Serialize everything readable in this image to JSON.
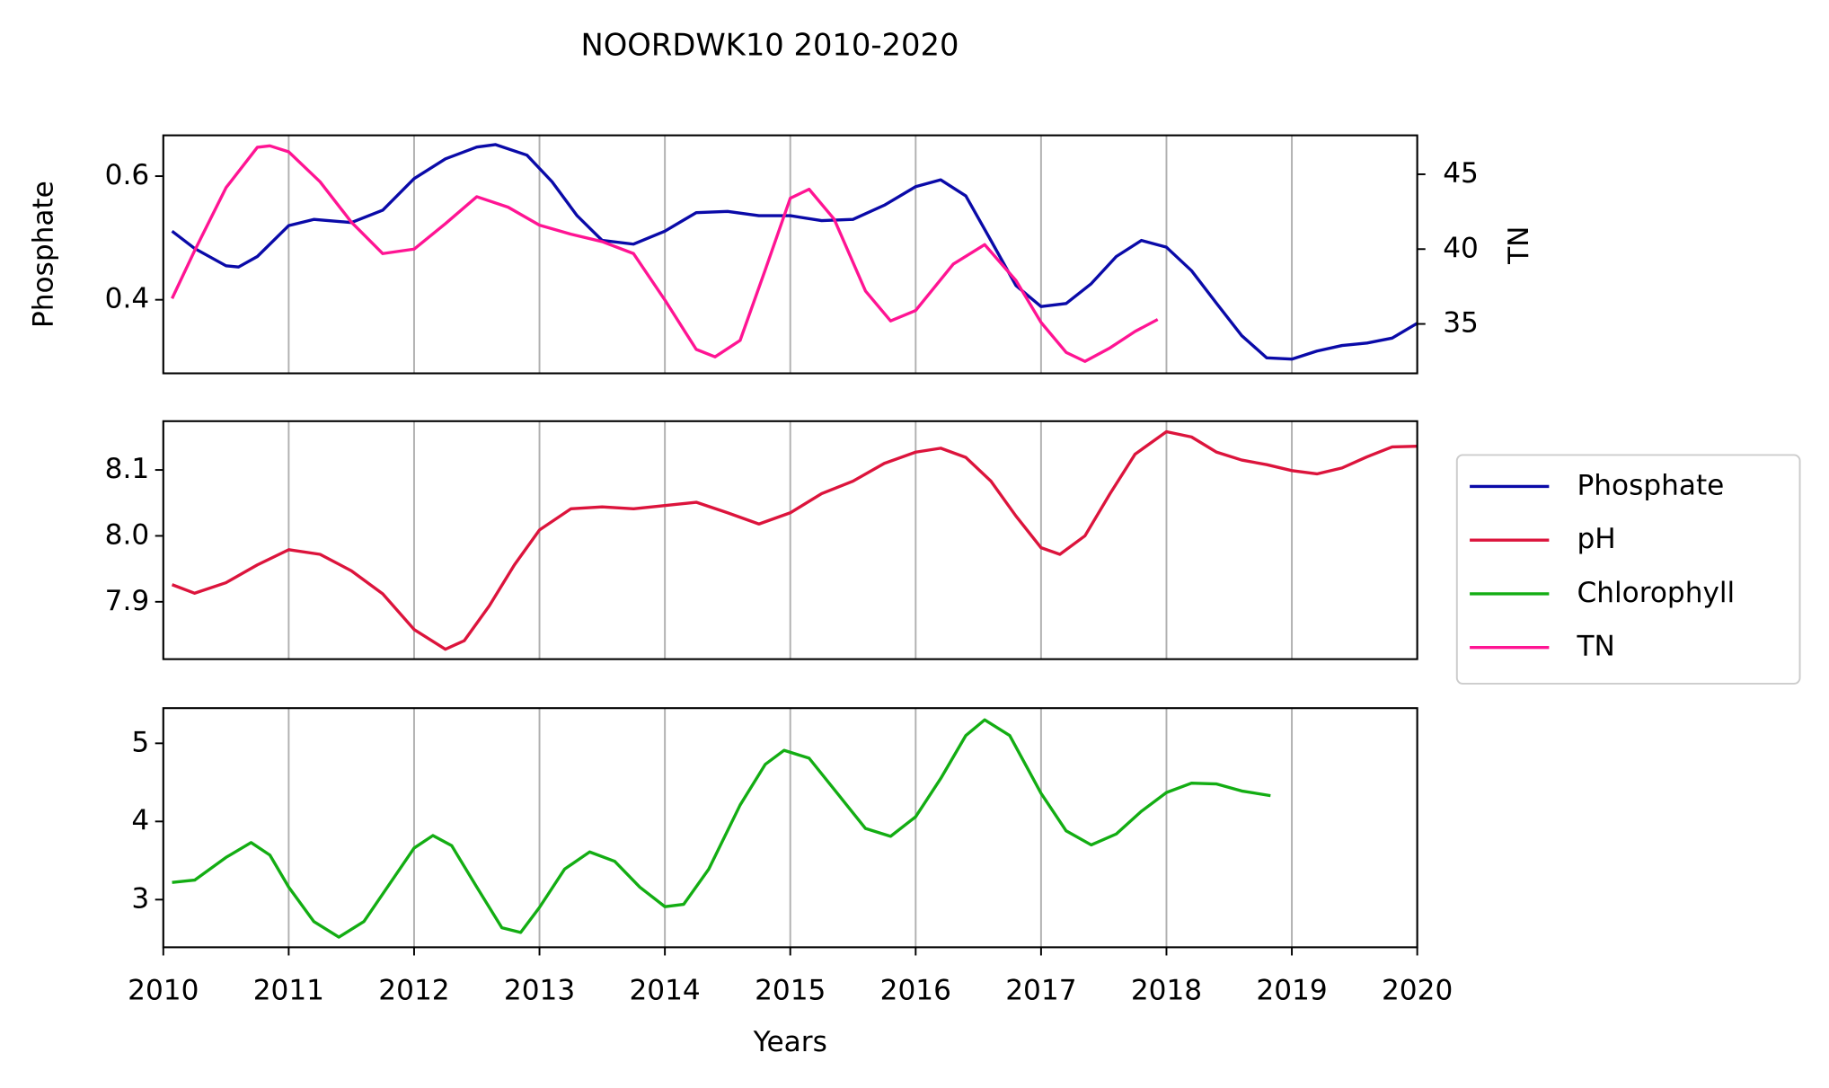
{
  "chart_data": [
    {
      "type": "line",
      "title": "NOORDWK10 2010-2020",
      "ylabel": "Phosphate",
      "y2label": "TN",
      "xlim": [
        2010,
        2020
      ],
      "xticks": [
        2010,
        2011,
        2012,
        2013,
        2014,
        2015,
        2016,
        2017,
        2018,
        2019,
        2020
      ],
      "grid": "x",
      "ylim": [
        0.281,
        0.666
      ],
      "yticks": [
        0.4,
        0.6
      ],
      "y2lim": [
        31.7,
        47.6
      ],
      "y2ticks": [
        35,
        40,
        45
      ],
      "series": [
        {
          "name": "Phosphate",
          "color": "#0a0aa8",
          "x": [
            2010.07,
            2010.25,
            2010.5,
            2010.6,
            2010.75,
            2011.0,
            2011.2,
            2011.5,
            2011.75,
            2012.0,
            2012.25,
            2012.5,
            2012.65,
            2012.9,
            2013.1,
            2013.3,
            2013.5,
            2013.75,
            2014.0,
            2014.25,
            2014.5,
            2014.75,
            2015.0,
            2015.25,
            2015.5,
            2015.75,
            2016.0,
            2016.2,
            2016.4,
            2016.6,
            2016.8,
            2017.0,
            2017.2,
            2017.4,
            2017.6,
            2017.8,
            2018.0,
            2018.2,
            2018.4,
            2018.6,
            2018.8,
            2019.0,
            2019.2,
            2019.4,
            2019.6,
            2019.8,
            2020.0
          ],
          "values": [
            0.511,
            0.483,
            0.455,
            0.453,
            0.47,
            0.52,
            0.53,
            0.525,
            0.545,
            0.596,
            0.628,
            0.647,
            0.651,
            0.634,
            0.591,
            0.536,
            0.496,
            0.49,
            0.511,
            0.541,
            0.543,
            0.536,
            0.536,
            0.528,
            0.53,
            0.553,
            0.583,
            0.594,
            0.568,
            0.496,
            0.423,
            0.389,
            0.394,
            0.426,
            0.47,
            0.496,
            0.485,
            0.447,
            0.394,
            0.342,
            0.306,
            0.304,
            0.317,
            0.326,
            0.33,
            0.338,
            0.362
          ]
        },
        {
          "name": "TN",
          "color": "#ff1493",
          "axis": "y2",
          "x": [
            2010.07,
            2010.25,
            2010.5,
            2010.75,
            2010.85,
            2011.0,
            2011.25,
            2011.5,
            2011.75,
            2012.0,
            2012.25,
            2012.5,
            2012.75,
            2013.0,
            2013.25,
            2013.5,
            2013.75,
            2014.0,
            2014.25,
            2014.4,
            2014.6,
            2014.8,
            2015.0,
            2015.15,
            2015.35,
            2015.6,
            2015.8,
            2016.0,
            2016.3,
            2016.55,
            2016.8,
            2017.0,
            2017.2,
            2017.35,
            2017.55,
            2017.75,
            2017.93
          ],
          "values": [
            36.7,
            39.9,
            44.1,
            46.8,
            46.9,
            46.5,
            44.5,
            41.8,
            39.7,
            40.0,
            41.7,
            43.5,
            42.8,
            41.6,
            41.0,
            40.5,
            39.7,
            36.6,
            33.3,
            32.8,
            33.9,
            38.6,
            43.4,
            44.0,
            42.0,
            37.2,
            35.2,
            35.9,
            39.0,
            40.3,
            37.9,
            35.1,
            33.1,
            32.5,
            33.4,
            34.5,
            35.3
          ]
        }
      ]
    },
    {
      "type": "line",
      "xlim": [
        2010,
        2020
      ],
      "xticks": [
        2010,
        2011,
        2012,
        2013,
        2014,
        2015,
        2016,
        2017,
        2018,
        2019,
        2020
      ],
      "grid": "x",
      "ylim": [
        7.813,
        8.174
      ],
      "yticks": [
        7.9,
        {
          "value": 8,
          "label": "8.0"
        },
        8.1
      ],
      "series": [
        {
          "name": "pH",
          "color": "#dc143c",
          "x": [
            2010.07,
            2010.25,
            2010.5,
            2010.75,
            2011.0,
            2011.25,
            2011.5,
            2011.75,
            2012.0,
            2012.25,
            2012.4,
            2012.6,
            2012.8,
            2013.0,
            2013.25,
            2013.5,
            2013.75,
            2014.0,
            2014.25,
            2014.5,
            2014.75,
            2015.0,
            2015.25,
            2015.5,
            2015.75,
            2016.0,
            2016.2,
            2016.4,
            2016.6,
            2016.8,
            2017.0,
            2017.15,
            2017.35,
            2017.55,
            2017.75,
            2018.0,
            2018.2,
            2018.4,
            2018.6,
            2018.8,
            2019.0,
            2019.2,
            2019.4,
            2019.6,
            2019.8,
            2020.0
          ],
          "values": [
            7.926,
            7.913,
            7.929,
            7.956,
            7.979,
            7.972,
            7.947,
            7.912,
            7.858,
            7.828,
            7.841,
            7.894,
            7.956,
            8.009,
            8.041,
            8.044,
            8.041,
            8.046,
            8.051,
            8.035,
            8.018,
            8.035,
            8.064,
            8.083,
            8.11,
            8.127,
            8.133,
            8.119,
            8.083,
            8.03,
            7.982,
            7.972,
            8.0,
            8.064,
            8.124,
            8.158,
            8.15,
            8.127,
            8.115,
            8.108,
            8.099,
            8.094,
            8.103,
            8.12,
            8.135,
            8.136
          ]
        }
      ]
    },
    {
      "type": "line",
      "xlabel": "Years",
      "xlim": [
        2010,
        2020
      ],
      "xticks": [
        2010,
        2011,
        2012,
        2013,
        2014,
        2015,
        2016,
        2017,
        2018,
        2019,
        2020
      ],
      "grid": "x",
      "ylim": [
        2.39,
        5.45
      ],
      "yticks": [
        3,
        4,
        5
      ],
      "series": [
        {
          "name": "Chlorophyll",
          "color": "#13ad13",
          "x": [
            2010.07,
            2010.25,
            2010.5,
            2010.7,
            2010.85,
            2011.0,
            2011.2,
            2011.4,
            2011.6,
            2011.8,
            2012.0,
            2012.15,
            2012.3,
            2012.5,
            2012.7,
            2012.85,
            2013.0,
            2013.2,
            2013.4,
            2013.6,
            2013.8,
            2014.0,
            2014.15,
            2014.35,
            2014.6,
            2014.8,
            2014.95,
            2015.15,
            2015.4,
            2015.6,
            2015.8,
            2016.0,
            2016.2,
            2016.4,
            2016.55,
            2016.75,
            2017.0,
            2017.2,
            2017.4,
            2017.6,
            2017.8,
            2018.0,
            2018.2,
            2018.4,
            2018.6,
            2018.83
          ],
          "values": [
            3.22,
            3.25,
            3.54,
            3.73,
            3.57,
            3.16,
            2.72,
            2.52,
            2.72,
            3.19,
            3.66,
            3.82,
            3.69,
            3.16,
            2.64,
            2.58,
            2.9,
            3.39,
            3.61,
            3.49,
            3.16,
            2.91,
            2.94,
            3.39,
            4.21,
            4.73,
            4.91,
            4.81,
            4.31,
            3.91,
            3.81,
            4.06,
            4.55,
            5.1,
            5.3,
            5.1,
            4.36,
            3.88,
            3.7,
            3.84,
            4.13,
            4.37,
            4.49,
            4.48,
            4.39,
            4.33
          ]
        }
      ]
    }
  ]
}
